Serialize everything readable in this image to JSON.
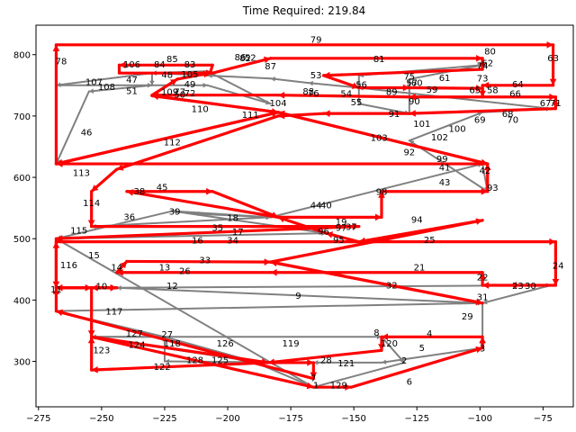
{
  "chart_data": {
    "type": "line",
    "title": "Time Required: 219.84",
    "xlabel": "",
    "ylabel": "",
    "xlim": [
      -276,
      -63
    ],
    "ylim": [
      226,
      848
    ],
    "x_ticks": [
      -275,
      -250,
      -225,
      -200,
      -175,
      -150,
      -125,
      -100,
      -75
    ],
    "y_ticks": [
      300,
      400,
      500,
      600,
      700,
      800
    ],
    "grid": false,
    "colors": {
      "red_route": "#ff0000",
      "gray_route": "#808080"
    },
    "nodes": [
      {
        "id": "1",
        "x": -165,
        "y": 262
      },
      {
        "id": "2",
        "x": -130,
        "y": 302
      },
      {
        "id": "3",
        "x": -99,
        "y": 322
      },
      {
        "id": "4",
        "x": -120,
        "y": 346
      },
      {
        "id": "5",
        "x": -123,
        "y": 323
      },
      {
        "id": "6",
        "x": -128,
        "y": 268
      },
      {
        "id": "7",
        "x": -166,
        "y": 274
      },
      {
        "id": "8",
        "x": -141,
        "y": 348
      },
      {
        "id": "9",
        "x": -172,
        "y": 408
      },
      {
        "id": "10",
        "x": -250,
        "y": 423
      },
      {
        "id": "11",
        "x": -268,
        "y": 418
      },
      {
        "id": "12",
        "x": -222,
        "y": 424
      },
      {
        "id": "13",
        "x": -225,
        "y": 454
      },
      {
        "id": "14",
        "x": -244,
        "y": 454
      },
      {
        "id": "15",
        "x": -253,
        "y": 474
      },
      {
        "id": "16",
        "x": -212,
        "y": 498
      },
      {
        "id": "17",
        "x": -196,
        "y": 512
      },
      {
        "id": "18",
        "x": -198,
        "y": 535
      },
      {
        "id": "19",
        "x": -155,
        "y": 528
      },
      {
        "id": "21",
        "x": -124,
        "y": 454
      },
      {
        "id": "22",
        "x": -99,
        "y": 438
      },
      {
        "id": "23",
        "x": -85,
        "y": 424
      },
      {
        "id": "24",
        "x": -69,
        "y": 457
      },
      {
        "id": "25",
        "x": -120,
        "y": 499
      },
      {
        "id": "26",
        "x": -217,
        "y": 448
      },
      {
        "id": "27",
        "x": -224,
        "y": 345
      },
      {
        "id": "28",
        "x": -161,
        "y": 303
      },
      {
        "id": "29",
        "x": -105,
        "y": 374
      },
      {
        "id": "30",
        "x": -80,
        "y": 424
      },
      {
        "id": "31",
        "x": -99,
        "y": 406
      },
      {
        "id": "32",
        "x": -135,
        "y": 425
      },
      {
        "id": "33",
        "x": -209,
        "y": 466
      },
      {
        "id": "34",
        "x": -198,
        "y": 498
      },
      {
        "id": "35",
        "x": -204,
        "y": 519
      },
      {
        "id": "36",
        "x": -239,
        "y": 536
      },
      {
        "id": "37",
        "x": -151,
        "y": 520
      },
      {
        "id": "38",
        "x": -235,
        "y": 578
      },
      {
        "id": "39",
        "x": -221,
        "y": 545
      },
      {
        "id": "40",
        "x": -161,
        "y": 555
      },
      {
        "id": "41",
        "x": -114,
        "y": 617
      },
      {
        "id": "42",
        "x": -98,
        "y": 612
      },
      {
        "id": "43",
        "x": -114,
        "y": 593
      },
      {
        "id": "44",
        "x": -165,
        "y": 555
      },
      {
        "id": "45",
        "x": -226,
        "y": 585
      },
      {
        "id": "46",
        "x": -256,
        "y": 674
      },
      {
        "id": "47",
        "x": -238,
        "y": 760
      },
      {
        "id": "48",
        "x": -224,
        "y": 768
      },
      {
        "id": "49",
        "x": -215,
        "y": 753
      },
      {
        "id": "50",
        "x": -219,
        "y": 736
      },
      {
        "id": "51",
        "x": -238,
        "y": 742
      },
      {
        "id": "52",
        "x": -191,
        "y": 796
      },
      {
        "id": "53",
        "x": -165,
        "y": 767
      },
      {
        "id": "54",
        "x": -153,
        "y": 737
      },
      {
        "id": "55",
        "x": -149,
        "y": 723
      },
      {
        "id": "56",
        "x": -147,
        "y": 752
      },
      {
        "id": "57",
        "x": -127,
        "y": 755
      },
      {
        "id": "58",
        "x": -95,
        "y": 743
      },
      {
        "id": "59",
        "x": -119,
        "y": 744
      },
      {
        "id": "60",
        "x": -125,
        "y": 755
      },
      {
        "id": "61",
        "x": -114,
        "y": 763
      },
      {
        "id": "62",
        "x": -97,
        "y": 787
      },
      {
        "id": "63",
        "x": -71,
        "y": 795
      },
      {
        "id": "64",
        "x": -85,
        "y": 753
      },
      {
        "id": "65",
        "x": -102,
        "y": 743
      },
      {
        "id": "66",
        "x": -86,
        "y": 737
      },
      {
        "id": "67",
        "x": -74,
        "y": 722
      },
      {
        "id": "68",
        "x": -89,
        "y": 704
      },
      {
        "id": "69",
        "x": -100,
        "y": 695
      },
      {
        "id": "70",
        "x": -87,
        "y": 695
      },
      {
        "id": "71",
        "x": -70,
        "y": 722
      },
      {
        "id": "72",
        "x": -215,
        "y": 738
      },
      {
        "id": "73",
        "x": -99,
        "y": 762
      },
      {
        "id": "74",
        "x": -99,
        "y": 783
      },
      {
        "id": "75",
        "x": -128,
        "y": 765
      },
      {
        "id": "76",
        "x": -166,
        "y": 738
      },
      {
        "id": "77",
        "x": -219,
        "y": 740
      },
      {
        "id": "78",
        "x": -266,
        "y": 790
      },
      {
        "id": "79",
        "x": -165,
        "y": 825
      },
      {
        "id": "80",
        "x": -96,
        "y": 806
      },
      {
        "id": "81",
        "x": -140,
        "y": 794
      },
      {
        "id": "82",
        "x": -193,
        "y": 795
      },
      {
        "id": "83",
        "x": -215,
        "y": 785
      },
      {
        "id": "84",
        "x": -227,
        "y": 785
      },
      {
        "id": "85",
        "x": -222,
        "y": 794
      },
      {
        "id": "86",
        "x": -195,
        "y": 797
      },
      {
        "id": "87",
        "x": -183,
        "y": 782
      },
      {
        "id": "88",
        "x": -168,
        "y": 741
      },
      {
        "id": "89",
        "x": -135,
        "y": 740
      },
      {
        "id": "90",
        "x": -126,
        "y": 725
      },
      {
        "id": "91",
        "x": -134,
        "y": 704
      },
      {
        "id": "92",
        "x": -128,
        "y": 642
      },
      {
        "id": "93",
        "x": -95,
        "y": 584
      },
      {
        "id": "94",
        "x": -125,
        "y": 532
      },
      {
        "id": "95",
        "x": -156,
        "y": 499
      },
      {
        "id": "96",
        "x": -162,
        "y": 513
      },
      {
        "id": "97",
        "x": -155,
        "y": 519
      },
      {
        "id": "98",
        "x": -139,
        "y": 577
      },
      {
        "id": "99",
        "x": -115,
        "y": 631
      },
      {
        "id": "100",
        "x": -109,
        "y": 680
      },
      {
        "id": "101",
        "x": -123,
        "y": 688
      },
      {
        "id": "102",
        "x": -116,
        "y": 666
      },
      {
        "id": "103",
        "x": -140,
        "y": 665
      },
      {
        "id": "104",
        "x": -180,
        "y": 722
      },
      {
        "id": "105",
        "x": -215,
        "y": 769
      },
      {
        "id": "106",
        "x": -238,
        "y": 785
      },
      {
        "id": "107",
        "x": -253,
        "y": 756
      },
      {
        "id": "108",
        "x": -248,
        "y": 748
      },
      {
        "id": "109",
        "x": -223,
        "y": 740
      },
      {
        "id": "110",
        "x": -211,
        "y": 712
      },
      {
        "id": "111",
        "x": -191,
        "y": 703
      },
      {
        "id": "112",
        "x": -222,
        "y": 658
      },
      {
        "id": "113",
        "x": -258,
        "y": 608
      },
      {
        "id": "114",
        "x": -254,
        "y": 559
      },
      {
        "id": "115",
        "x": -259,
        "y": 514
      },
      {
        "id": "116",
        "x": -263,
        "y": 458
      },
      {
        "id": "117",
        "x": -245,
        "y": 382
      },
      {
        "id": "118",
        "x": -222,
        "y": 330
      },
      {
        "id": "119",
        "x": -175,
        "y": 330
      },
      {
        "id": "120",
        "x": -136,
        "y": 330
      },
      {
        "id": "121",
        "x": -153,
        "y": 298
      },
      {
        "id": "122",
        "x": -226,
        "y": 292
      },
      {
        "id": "123",
        "x": -250,
        "y": 319
      },
      {
        "id": "124",
        "x": -236,
        "y": 328
      },
      {
        "id": "125",
        "x": -203,
        "y": 303
      },
      {
        "id": "126",
        "x": -201,
        "y": 330
      },
      {
        "id": "127",
        "x": -237,
        "y": 346
      },
      {
        "id": "128",
        "x": -213,
        "y": 303
      },
      {
        "id": "129",
        "x": -156,
        "y": 262
      }
    ],
    "red_route": [
      [
        -166,
        258
      ],
      [
        -151,
        258
      ],
      [
        -99,
        322
      ],
      [
        -99,
        340
      ],
      [
        -139,
        340
      ],
      [
        -139,
        318
      ],
      [
        -184,
        298
      ],
      [
        -254,
        286
      ],
      [
        -254,
        340
      ],
      [
        -184,
        298
      ],
      [
        -166,
        298
      ],
      [
        -166,
        272
      ],
      [
        -268,
        382
      ],
      [
        -268,
        420
      ],
      [
        -244,
        420
      ],
      [
        -268,
        420
      ],
      [
        -268,
        495
      ],
      [
        -70,
        495
      ],
      [
        -70,
        424
      ],
      [
        -88,
        424
      ],
      [
        -99,
        424
      ],
      [
        -99,
        445
      ],
      [
        -183,
        445
      ],
      [
        -244,
        445
      ],
      [
        -240,
        463
      ],
      [
        -183,
        462
      ],
      [
        -99,
        395
      ],
      [
        -183,
        462
      ],
      [
        -99,
        530
      ],
      [
        -148,
        495
      ],
      [
        -161,
        509
      ],
      [
        -180,
        535
      ],
      [
        -240,
        577
      ],
      [
        -206,
        577
      ],
      [
        -180,
        535
      ],
      [
        -139,
        535
      ],
      [
        -139,
        577
      ],
      [
        -97,
        577
      ],
      [
        -97,
        622
      ],
      [
        -268,
        622
      ],
      [
        -180,
        706
      ],
      [
        -230,
        733
      ],
      [
        -180,
        706
      ],
      [
        -97,
        622
      ],
      [
        -180,
        706
      ],
      [
        -268,
        622
      ],
      [
        -268,
        816
      ],
      [
        -71,
        816
      ],
      [
        -71,
        750
      ],
      [
        -99,
        750
      ],
      [
        -99,
        731
      ],
      [
        -128,
        731
      ],
      [
        -180,
        734
      ],
      [
        -230,
        734
      ],
      [
        -220,
        760
      ],
      [
        -207,
        770
      ],
      [
        -206,
        783
      ],
      [
        -243,
        783
      ],
      [
        -243,
        770
      ],
      [
        -206,
        770
      ],
      [
        -183,
        794
      ],
      [
        -99,
        794
      ],
      [
        -99,
        776
      ],
      [
        -162,
        766
      ],
      [
        -148,
        746
      ],
      [
        -128,
        746
      ],
      [
        -99,
        745
      ],
      [
        -99,
        731
      ],
      [
        -70,
        731
      ],
      [
        -70,
        712
      ],
      [
        -128,
        704
      ],
      [
        -162,
        704
      ],
      [
        -180,
        700
      ],
      [
        -244,
        613
      ],
      [
        -254,
        577
      ],
      [
        -254,
        520
      ],
      [
        -148,
        520
      ],
      [
        -268,
        500
      ],
      [
        -268,
        420
      ],
      [
        -254,
        420
      ],
      [
        -244,
        420
      ],
      [
        -254,
        420
      ],
      [
        -254,
        340
      ],
      [
        -166,
        258
      ]
    ],
    "gray_route": [
      [
        -166,
        258
      ],
      [
        -190,
        300
      ],
      [
        -225,
        340
      ],
      [
        -268,
        382
      ],
      [
        -99,
        395
      ],
      [
        -244,
        420
      ],
      [
        -72,
        424
      ],
      [
        -99,
        395
      ],
      [
        -99,
        322
      ],
      [
        -139,
        298
      ],
      [
        -166,
        298
      ],
      [
        -225,
        300
      ],
      [
        -225,
        340
      ],
      [
        -254,
        340
      ],
      [
        -190,
        300
      ],
      [
        -254,
        340
      ],
      [
        -139,
        340
      ],
      [
        -130,
        298
      ],
      [
        -166,
        258
      ],
      [
        -268,
        500
      ],
      [
        -148,
        520
      ],
      [
        -254,
        520
      ],
      [
        -183,
        535
      ],
      [
        -222,
        545
      ],
      [
        -268,
        500
      ],
      [
        -161,
        509
      ],
      [
        -222,
        545
      ],
      [
        -210,
        540
      ],
      [
        -183,
        535
      ],
      [
        -99,
        622
      ],
      [
        -97,
        577
      ],
      [
        -128,
        660
      ],
      [
        -99,
        706
      ],
      [
        -72,
        712
      ],
      [
        -148,
        746
      ],
      [
        -148,
        720
      ],
      [
        -128,
        704
      ],
      [
        -128,
        760
      ],
      [
        -99,
        783
      ],
      [
        -148,
        766
      ],
      [
        -148,
        746
      ],
      [
        -168,
        754
      ],
      [
        -183,
        761
      ],
      [
        -208,
        766
      ],
      [
        -230,
        770
      ],
      [
        -268,
        750
      ],
      [
        -230,
        750
      ],
      [
        -208,
        750
      ],
      [
        -183,
        720
      ],
      [
        -208,
        773
      ],
      [
        -230,
        770
      ],
      [
        -230,
        750
      ],
      [
        -255,
        740
      ],
      [
        -268,
        622
      ]
    ]
  }
}
